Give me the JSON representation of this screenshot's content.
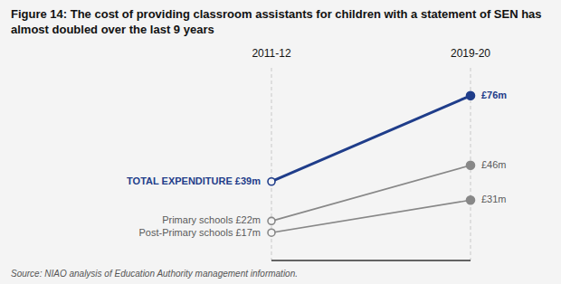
{
  "chart_data": {
    "type": "slope",
    "title": "Figure 14: The cost of providing classroom assistants for children with a statement of SEN has almost doubled over the last 9 years",
    "source": "Source: NIAO analysis of Education Authority management information.",
    "categories": [
      "2011-12",
      "2019-20"
    ],
    "series": [
      {
        "color": "#1f3d8a",
        "values": [
          39,
          76
        ],
        "value_labels": [
          "TOTAL EXPENDITURE £39m",
          "£76m"
        ]
      },
      {
        "color": "#888888",
        "values": [
          22,
          46
        ],
        "value_labels": [
          "Primary schools £22m",
          "£46m"
        ]
      },
      {
        "color": "#888888",
        "values": [
          17,
          31
        ],
        "value_labels": [
          "Post-Primary schools £17m",
          "£31m"
        ]
      }
    ],
    "ylim": [
      5,
      88
    ],
    "data_labels": true,
    "tick_labels": false,
    "grid": false
  }
}
